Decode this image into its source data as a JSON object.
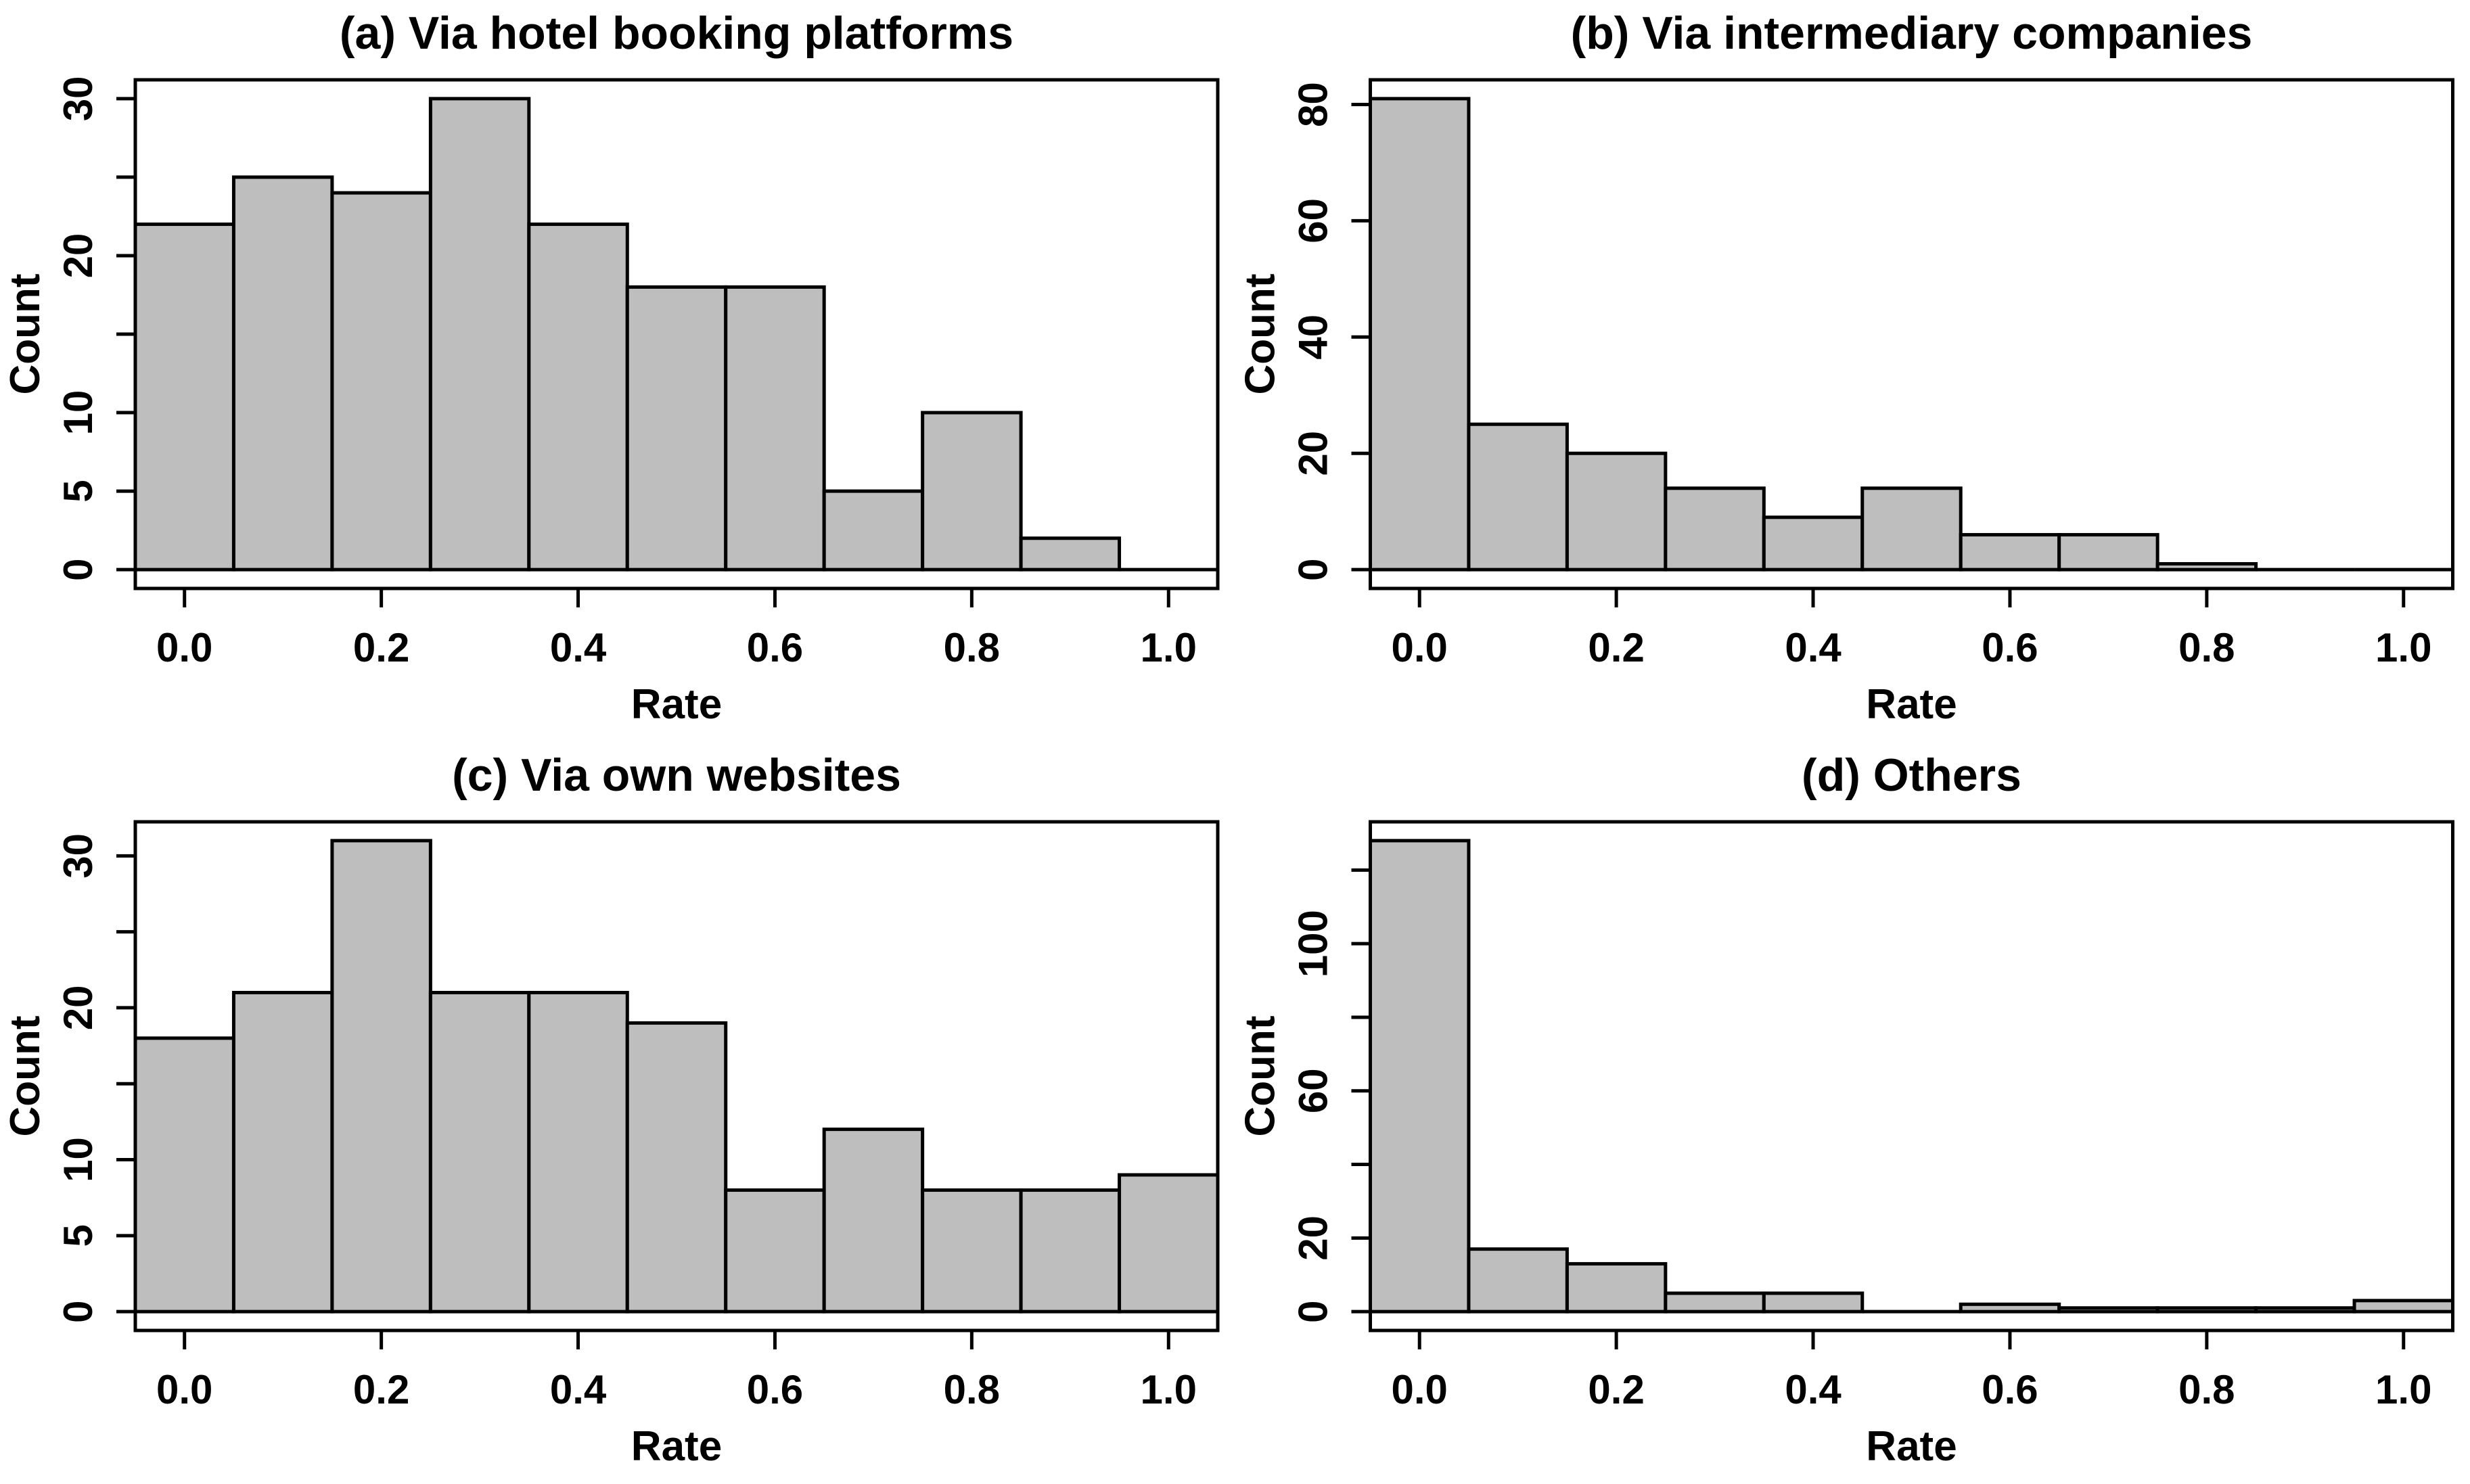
{
  "page": {
    "background": "#ffffff",
    "description_layout": "2x2 grid of base-R style histograms"
  },
  "axes": {
    "xlabel": "Rate",
    "ylabel": "Count",
    "x_ticks": [
      {
        "v": 0.0,
        "label": "0.0"
      },
      {
        "v": 0.2,
        "label": "0.2"
      },
      {
        "v": 0.4,
        "label": "0.4"
      },
      {
        "v": 0.6,
        "label": "0.6"
      },
      {
        "v": 0.8,
        "label": "0.8"
      },
      {
        "v": 1.0,
        "label": "1.0"
      }
    ]
  },
  "style": {
    "bar_fill": "#bebebe",
    "axis_color": "#000000",
    "text_color": "#000000"
  },
  "chart_data": [
    {
      "type": "bar",
      "subtype": "histogram",
      "panel": "a",
      "title": "(a) Via hotel booking platforms",
      "xlabel": "Rate",
      "ylabel": "Count",
      "bin_start": -0.05,
      "bin_width": 0.1,
      "bin_edges": [
        -0.05,
        0.05,
        0.15,
        0.25,
        0.35,
        0.45,
        0.55,
        0.65,
        0.75,
        0.85,
        0.95,
        1.05
      ],
      "counts": [
        22,
        25,
        24,
        30,
        22,
        18,
        18,
        5,
        10,
        2,
        0
      ],
      "xlim": [
        -0.05,
        1.05
      ],
      "ylim": [
        0,
        30
      ],
      "y_ticks_labeled": [
        {
          "v": 0,
          "label": "0"
        },
        {
          "v": 5,
          "label": "5"
        },
        {
          "v": 10,
          "label": "10"
        },
        {
          "v": 20,
          "label": "20"
        },
        {
          "v": 30,
          "label": "30"
        }
      ],
      "y_ticks_minor": [
        15,
        25
      ],
      "bar_fill": "#bebebe",
      "axis_color": "#000000"
    },
    {
      "type": "bar",
      "subtype": "histogram",
      "panel": "b",
      "title": "(b) Via intermediary companies",
      "xlabel": "Rate",
      "ylabel": "Count",
      "bin_start": -0.05,
      "bin_width": 0.1,
      "bin_edges": [
        -0.05,
        0.05,
        0.15,
        0.25,
        0.35,
        0.45,
        0.55,
        0.65,
        0.75,
        0.85,
        0.95,
        1.05
      ],
      "counts": [
        81,
        25,
        20,
        14,
        9,
        14,
        6,
        6,
        1,
        0,
        0
      ],
      "xlim": [
        -0.05,
        1.05
      ],
      "ylim": [
        0,
        81
      ],
      "y_ticks_labeled": [
        {
          "v": 0,
          "label": "0"
        },
        {
          "v": 20,
          "label": "20"
        },
        {
          "v": 40,
          "label": "40"
        },
        {
          "v": 60,
          "label": "60"
        },
        {
          "v": 80,
          "label": "80"
        }
      ],
      "y_ticks_minor": [],
      "bar_fill": "#bebebe",
      "axis_color": "#000000"
    },
    {
      "type": "bar",
      "subtype": "histogram",
      "panel": "c",
      "title": "(c) Via own websites",
      "xlabel": "Rate",
      "ylabel": "Count",
      "bin_start": -0.05,
      "bin_width": 0.1,
      "bin_edges": [
        -0.05,
        0.05,
        0.15,
        0.25,
        0.35,
        0.45,
        0.55,
        0.65,
        0.75,
        0.85,
        0.95,
        1.05
      ],
      "counts": [
        18,
        21,
        31,
        21,
        21,
        19,
        8,
        12,
        8,
        8,
        9
      ],
      "xlim": [
        -0.05,
        1.05
      ],
      "ylim": [
        0,
        31
      ],
      "y_ticks_labeled": [
        {
          "v": 0,
          "label": "0"
        },
        {
          "v": 5,
          "label": "5"
        },
        {
          "v": 10,
          "label": "10"
        },
        {
          "v": 20,
          "label": "20"
        },
        {
          "v": 30,
          "label": "30"
        }
      ],
      "y_ticks_minor": [
        15,
        25
      ],
      "bar_fill": "#bebebe",
      "axis_color": "#000000"
    },
    {
      "type": "bar",
      "subtype": "histogram",
      "panel": "d",
      "title": "(d) Others",
      "xlabel": "Rate",
      "ylabel": "Count",
      "bin_start": -0.05,
      "bin_width": 0.1,
      "bin_edges": [
        -0.05,
        0.05,
        0.15,
        0.25,
        0.35,
        0.45,
        0.55,
        0.65,
        0.75,
        0.85,
        0.95,
        1.05
      ],
      "counts": [
        128,
        17,
        13,
        5,
        5,
        0,
        2,
        1,
        1,
        1,
        3
      ],
      "xlim": [
        -0.05,
        1.05
      ],
      "ylim": [
        0,
        128
      ],
      "y_ticks_labeled": [
        {
          "v": 0,
          "label": "0"
        },
        {
          "v": 20,
          "label": "20"
        },
        {
          "v": 60,
          "label": "60"
        },
        {
          "v": 100,
          "label": "100"
        }
      ],
      "y_ticks_minor": [
        40,
        80,
        120
      ],
      "bar_fill": "#bebebe",
      "axis_color": "#000000"
    }
  ]
}
